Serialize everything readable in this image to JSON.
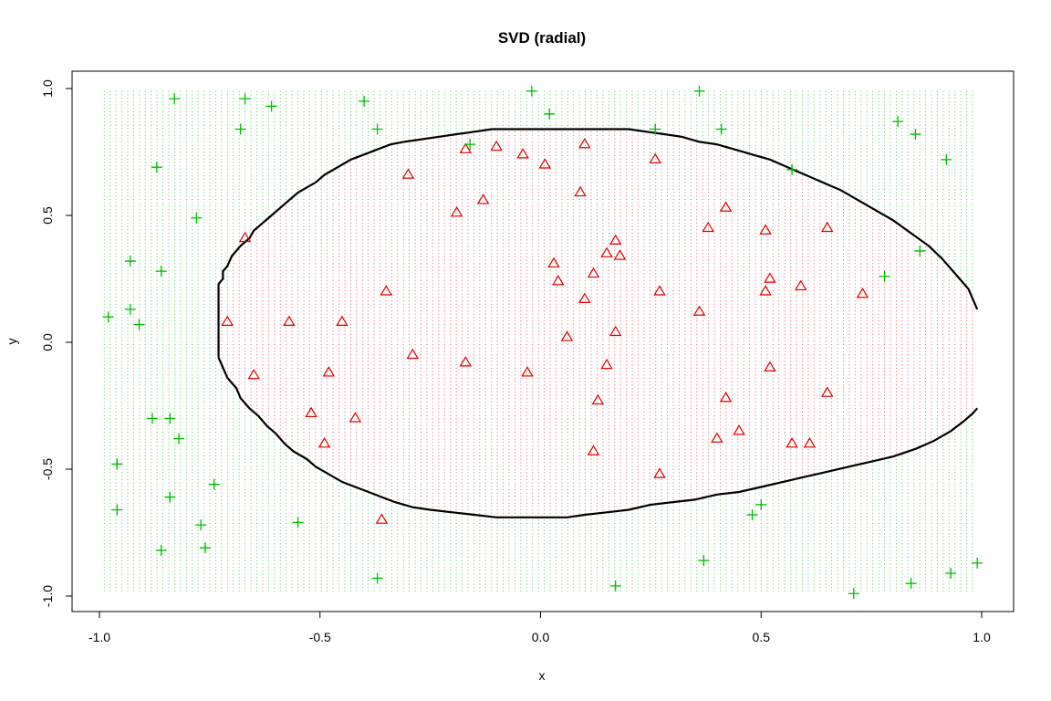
{
  "chart_data": {
    "type": "scatter",
    "title": "SVD (radial)",
    "xlabel": "x",
    "ylabel": "y",
    "xlim": [
      -1.0,
      1.0
    ],
    "ylim": [
      -1.0,
      1.0
    ],
    "x_ticks": [
      "-1.0",
      "-0.5",
      "0.0",
      "0.5",
      "1.0"
    ],
    "y_ticks": [
      "-1.0",
      "-0.5",
      "0.0",
      "0.5",
      "1.0"
    ],
    "x_tick_values": [
      -1.0,
      -0.5,
      0.0,
      0.5,
      1.0
    ],
    "y_tick_values": [
      -1.0,
      -0.5,
      0.0,
      0.5,
      1.0
    ],
    "colors": {
      "inside": "#dd0000",
      "outside": "#00bb00",
      "boundary": "#000000"
    },
    "grid": {
      "x_range": [
        -0.99,
        0.99
      ],
      "y_range": [
        -0.98,
        0.99
      ],
      "step": 0.0133
    },
    "series": [
      {
        "marker": "triangle",
        "color": "#dd0000",
        "points": [
          [
            -0.67,
            0.41
          ],
          [
            -0.71,
            0.08
          ],
          [
            -0.65,
            -0.13
          ],
          [
            -0.57,
            0.08
          ],
          [
            -0.52,
            -0.28
          ],
          [
            -0.49,
            -0.4
          ],
          [
            -0.48,
            -0.12
          ],
          [
            -0.45,
            0.08
          ],
          [
            -0.42,
            -0.3
          ],
          [
            -0.35,
            0.2
          ],
          [
            -0.36,
            -0.7
          ],
          [
            -0.3,
            0.66
          ],
          [
            -0.29,
            -0.05
          ],
          [
            -0.19,
            0.51
          ],
          [
            -0.17,
            0.76
          ],
          [
            -0.17,
            -0.08
          ],
          [
            -0.13,
            0.56
          ],
          [
            -0.1,
            0.77
          ],
          [
            -0.04,
            0.74
          ],
          [
            -0.03,
            -0.12
          ],
          [
            0.01,
            0.7
          ],
          [
            0.03,
            0.31
          ],
          [
            0.04,
            0.24
          ],
          [
            0.06,
            0.02
          ],
          [
            0.09,
            0.59
          ],
          [
            0.1,
            0.78
          ],
          [
            0.1,
            0.17
          ],
          [
            0.12,
            0.27
          ],
          [
            0.12,
            -0.43
          ],
          [
            0.13,
            -0.23
          ],
          [
            0.15,
            0.35
          ],
          [
            0.15,
            -0.09
          ],
          [
            0.17,
            0.4
          ],
          [
            0.17,
            0.04
          ],
          [
            0.18,
            0.34
          ],
          [
            0.26,
            0.72
          ],
          [
            0.27,
            0.2
          ],
          [
            0.27,
            -0.52
          ],
          [
            0.36,
            0.12
          ],
          [
            0.38,
            0.45
          ],
          [
            0.4,
            -0.38
          ],
          [
            0.42,
            0.53
          ],
          [
            0.42,
            -0.22
          ],
          [
            0.45,
            -0.35
          ],
          [
            0.51,
            0.44
          ],
          [
            0.51,
            0.2
          ],
          [
            0.52,
            -0.1
          ],
          [
            0.52,
            0.25
          ],
          [
            0.57,
            -0.4
          ],
          [
            0.59,
            0.22
          ],
          [
            0.61,
            -0.4
          ],
          [
            0.65,
            0.45
          ],
          [
            0.65,
            -0.2
          ],
          [
            0.73,
            0.19
          ]
        ]
      },
      {
        "marker": "plus",
        "color": "#00bb00",
        "points": [
          [
            -0.98,
            0.1
          ],
          [
            -0.96,
            -0.48
          ],
          [
            -0.96,
            -0.66
          ],
          [
            -0.93,
            0.32
          ],
          [
            -0.93,
            0.13
          ],
          [
            -0.91,
            0.07
          ],
          [
            -0.88,
            -0.3
          ],
          [
            -0.87,
            0.69
          ],
          [
            -0.86,
            0.28
          ],
          [
            -0.86,
            -0.82
          ],
          [
            -0.84,
            -0.3
          ],
          [
            -0.84,
            -0.61
          ],
          [
            -0.83,
            0.96
          ],
          [
            -0.82,
            -0.38
          ],
          [
            -0.78,
            0.49
          ],
          [
            -0.77,
            -0.72
          ],
          [
            -0.76,
            -0.81
          ],
          [
            -0.74,
            -0.56
          ],
          [
            -0.68,
            0.84
          ],
          [
            -0.67,
            0.96
          ],
          [
            -0.61,
            0.93
          ],
          [
            -0.55,
            -0.71
          ],
          [
            -0.4,
            0.95
          ],
          [
            -0.37,
            0.84
          ],
          [
            -0.37,
            -0.93
          ],
          [
            -0.16,
            0.78
          ],
          [
            -0.02,
            0.99
          ],
          [
            0.02,
            0.9
          ],
          [
            0.17,
            -0.96
          ],
          [
            0.26,
            0.84
          ],
          [
            0.36,
            0.99
          ],
          [
            0.37,
            -0.86
          ],
          [
            0.41,
            0.84
          ],
          [
            0.48,
            -0.68
          ],
          [
            0.5,
            -0.64
          ],
          [
            0.57,
            0.68
          ],
          [
            0.71,
            -0.99
          ],
          [
            0.78,
            0.26
          ],
          [
            0.81,
            0.87
          ],
          [
            0.84,
            -0.95
          ],
          [
            0.85,
            0.82
          ],
          [
            0.86,
            0.36
          ],
          [
            0.92,
            0.72
          ],
          [
            0.93,
            -0.91
          ],
          [
            0.99,
            -0.87
          ]
        ]
      }
    ],
    "boundary": [
      [
        -0.73,
        0.23
      ],
      [
        -0.72,
        0.25
      ],
      [
        -0.72,
        0.28
      ],
      [
        -0.71,
        0.3
      ],
      [
        -0.7,
        0.34
      ],
      [
        -0.68,
        0.38
      ],
      [
        -0.66,
        0.41
      ],
      [
        -0.65,
        0.44
      ],
      [
        -0.63,
        0.47
      ],
      [
        -0.61,
        0.5
      ],
      [
        -0.59,
        0.53
      ],
      [
        -0.57,
        0.56
      ],
      [
        -0.55,
        0.59
      ],
      [
        -0.53,
        0.61
      ],
      [
        -0.51,
        0.63
      ],
      [
        -0.49,
        0.66
      ],
      [
        -0.47,
        0.68
      ],
      [
        -0.45,
        0.7
      ],
      [
        -0.43,
        0.72
      ],
      [
        -0.4,
        0.74
      ],
      [
        -0.37,
        0.76
      ],
      [
        -0.34,
        0.78
      ],
      [
        -0.31,
        0.79
      ],
      [
        -0.27,
        0.8
      ],
      [
        -0.23,
        0.81
      ],
      [
        -0.19,
        0.82
      ],
      [
        -0.15,
        0.83
      ],
      [
        -0.11,
        0.84
      ],
      [
        -0.07,
        0.84
      ],
      [
        0.2,
        0.84
      ],
      [
        0.24,
        0.83
      ],
      [
        0.28,
        0.82
      ],
      [
        0.32,
        0.81
      ],
      [
        0.36,
        0.79
      ],
      [
        0.4,
        0.78
      ],
      [
        0.44,
        0.76
      ],
      [
        0.48,
        0.74
      ],
      [
        0.52,
        0.72
      ],
      [
        0.56,
        0.69
      ],
      [
        0.6,
        0.66
      ],
      [
        0.64,
        0.63
      ],
      [
        0.68,
        0.6
      ],
      [
        0.72,
        0.56
      ],
      [
        0.76,
        0.52
      ],
      [
        0.8,
        0.48
      ],
      [
        0.84,
        0.43
      ],
      [
        0.88,
        0.38
      ],
      [
        0.91,
        0.33
      ],
      [
        0.94,
        0.27
      ],
      [
        0.97,
        0.21
      ],
      [
        0.98,
        0.17
      ],
      [
        0.99,
        0.13
      ]
    ],
    "boundary_lower": [
      [
        -0.73,
        -0.06
      ],
      [
        -0.72,
        -0.1
      ],
      [
        -0.71,
        -0.14
      ],
      [
        -0.69,
        -0.18
      ],
      [
        -0.68,
        -0.22
      ],
      [
        -0.66,
        -0.26
      ],
      [
        -0.64,
        -0.29
      ],
      [
        -0.62,
        -0.33
      ],
      [
        -0.6,
        -0.36
      ],
      [
        -0.58,
        -0.4
      ],
      [
        -0.56,
        -0.43
      ],
      [
        -0.53,
        -0.46
      ],
      [
        -0.51,
        -0.49
      ],
      [
        -0.48,
        -0.52
      ],
      [
        -0.45,
        -0.55
      ],
      [
        -0.42,
        -0.57
      ],
      [
        -0.39,
        -0.59
      ],
      [
        -0.36,
        -0.61
      ],
      [
        -0.33,
        -0.63
      ],
      [
        -0.29,
        -0.65
      ],
      [
        -0.25,
        -0.66
      ],
      [
        -0.2,
        -0.67
      ],
      [
        -0.15,
        -0.68
      ],
      [
        -0.1,
        -0.69
      ],
      [
        0.06,
        -0.69
      ],
      [
        0.1,
        -0.68
      ],
      [
        0.15,
        -0.67
      ],
      [
        0.2,
        -0.66
      ],
      [
        0.25,
        -0.64
      ],
      [
        0.3,
        -0.63
      ],
      [
        0.35,
        -0.62
      ],
      [
        0.4,
        -0.6
      ],
      [
        0.45,
        -0.59
      ],
      [
        0.5,
        -0.57
      ],
      [
        0.55,
        -0.55
      ],
      [
        0.6,
        -0.53
      ],
      [
        0.65,
        -0.51
      ],
      [
        0.7,
        -0.49
      ],
      [
        0.75,
        -0.47
      ],
      [
        0.8,
        -0.45
      ],
      [
        0.85,
        -0.42
      ],
      [
        0.89,
        -0.39
      ],
      [
        0.93,
        -0.35
      ],
      [
        0.96,
        -0.31
      ],
      [
        0.98,
        -0.28
      ],
      [
        0.99,
        -0.26
      ]
    ]
  }
}
